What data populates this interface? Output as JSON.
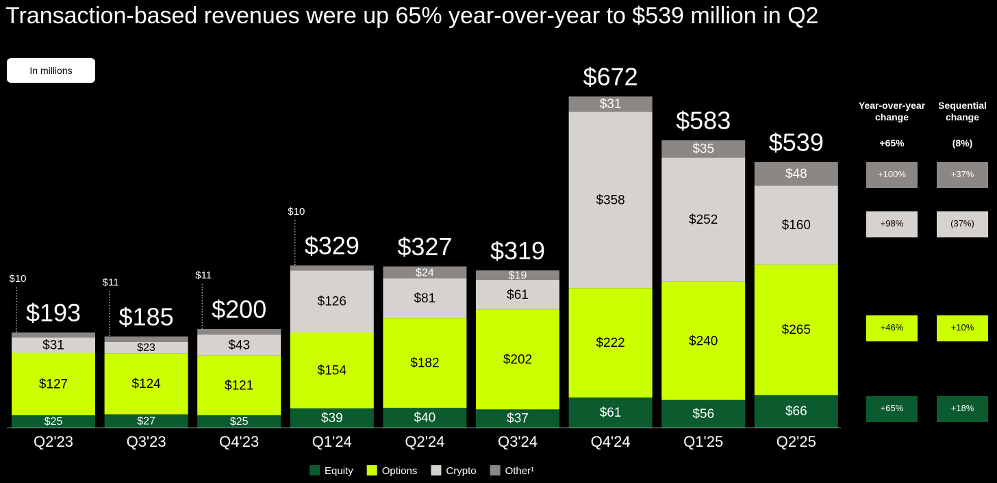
{
  "chart_data": {
    "type": "stacked_bar",
    "title": "Transaction-based revenues were up 65% year-over-year to $539 million in Q2",
    "note": "In millions",
    "categories": [
      "Q2'23",
      "Q3'23",
      "Q4'23",
      "Q1'24",
      "Q2'24",
      "Q3'24",
      "Q4'24",
      "Q1'25",
      "Q2'25"
    ],
    "series": [
      {
        "name": "Equity",
        "color": "#0b5b2e",
        "values": [
          25,
          27,
          25,
          39,
          40,
          37,
          61,
          56,
          66
        ],
        "value_labels": [
          "$25",
          "$27",
          "$25",
          "$39",
          "$40",
          "$37",
          "$61",
          "$56",
          "$66"
        ]
      },
      {
        "name": "Options",
        "color": "#ccff00",
        "values": [
          127,
          124,
          121,
          154,
          182,
          202,
          222,
          240,
          265
        ],
        "value_labels": [
          "$127",
          "$124",
          "$121",
          "$154",
          "$182",
          "$202",
          "$222",
          "$240",
          "$265"
        ]
      },
      {
        "name": "Crypto",
        "color": "#d6d3ce",
        "values": [
          31,
          23,
          43,
          126,
          81,
          61,
          358,
          252,
          160
        ],
        "value_labels": [
          "$31",
          "$23",
          "$43",
          "$126",
          "$81",
          "$61",
          "$358",
          "$252",
          "$160"
        ]
      },
      {
        "name": "Other¹",
        "color": "#8a8784",
        "values": [
          10,
          11,
          11,
          10,
          24,
          19,
          31,
          35,
          48
        ],
        "value_labels": [
          "$10",
          "$11",
          "$11",
          "$10",
          "$24",
          "$19",
          "$31",
          "$35",
          "$48"
        ]
      }
    ],
    "totals": [
      193,
      185,
      200,
      329,
      327,
      319,
      672,
      583,
      539
    ],
    "total_labels": [
      "$193",
      "$185",
      "$200",
      "$329",
      "$327",
      "$319",
      "$672",
      "$583",
      "$539"
    ]
  },
  "change_table": {
    "headers": [
      "Year-over-year change",
      "Sequential change"
    ],
    "total_row": [
      "+65%",
      "(8%)"
    ],
    "rows": [
      {
        "series": "Other¹",
        "cells": [
          "+100%",
          "+37%"
        ]
      },
      {
        "series": "Crypto",
        "cells": [
          "+98%",
          "(37%)"
        ]
      },
      {
        "series": "Options",
        "cells": [
          "+46%",
          "+10%"
        ]
      },
      {
        "series": "Equity",
        "cells": [
          "+65%",
          "+18%"
        ]
      }
    ]
  }
}
